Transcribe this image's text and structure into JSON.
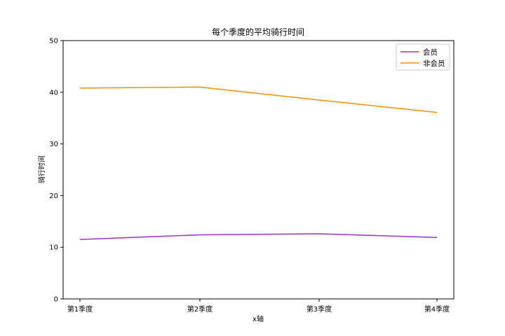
{
  "chart_data": {
    "type": "line",
    "title": "每个季度的平均骑行时间",
    "xlabel": "x轴",
    "ylabel": "骑行时间",
    "categories": [
      "第1季度",
      "第2季度",
      "第3季度",
      "第4季度"
    ],
    "ylim": [
      0,
      50
    ],
    "yticks": [
      0,
      10,
      20,
      30,
      40,
      50
    ],
    "grid": false,
    "legend": "top-right",
    "series": [
      {
        "name": "会员",
        "color": "#9932cc",
        "values": [
          11.5,
          12.4,
          12.6,
          11.9
        ]
      },
      {
        "name": "非会员",
        "color": "#ff8c00",
        "values": [
          40.8,
          41.0,
          38.5,
          36.1
        ]
      }
    ]
  }
}
